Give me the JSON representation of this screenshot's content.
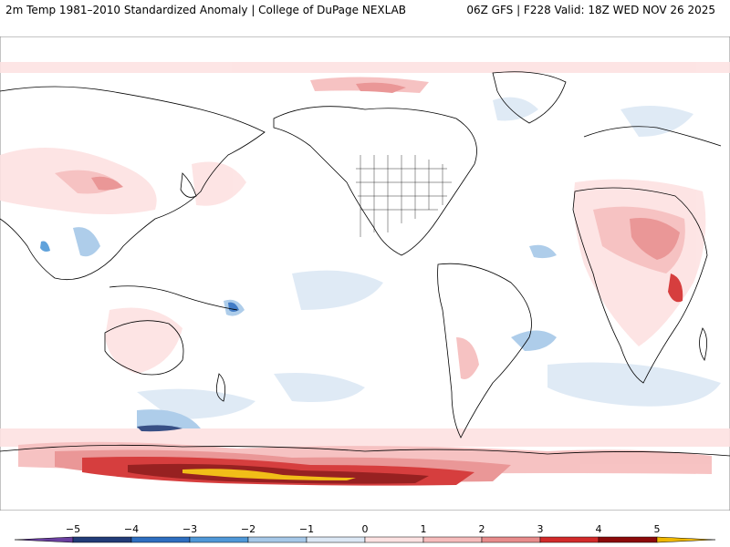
{
  "header": {
    "left_title": "2m Temp 1981–2010 Standardized Anomaly | College of DuPage NEXLAB",
    "right_title": "06Z GFS | F228 Valid: 18Z WED NOV 26 2025"
  },
  "map": {
    "projection": "equirectangular, Pacific-centered"
  },
  "legend": {
    "ticks": [
      "−5",
      "−4",
      "−3",
      "−2",
      "−1",
      "0",
      "1",
      "2",
      "3",
      "4",
      "5"
    ],
    "colors": {
      "below_min": "#6a3fa0",
      "n5_n4": "#223c78",
      "n4_n3": "#2e6ec0",
      "n3_n2": "#4f98d8",
      "n2_n1": "#a6c8e8",
      "n1_0": "#dce8f5",
      "p0_p1": "#fde2e2",
      "p1_p2": "#f6bcbc",
      "p2_p3": "#e88c8c",
      "p3_p4": "#d22a2a",
      "p4_p5": "#8c0a0a",
      "above_max": "#f0b800"
    }
  }
}
